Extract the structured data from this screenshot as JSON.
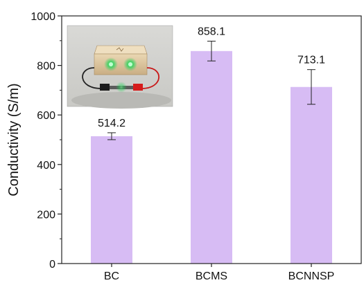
{
  "chart_data": {
    "type": "bar",
    "categories": [
      "BC",
      "BCMS",
      "BCNNSP"
    ],
    "values": [
      514.2,
      858.1,
      713.1
    ],
    "error": [
      14,
      40,
      70
    ],
    "data_labels": [
      "514.2",
      "858.1",
      "713.1"
    ],
    "ylabel": "Conductivity (S/m)",
    "xlabel": "",
    "ylim": [
      0,
      1000
    ],
    "yticks": [
      0,
      200,
      400,
      600,
      800,
      1000
    ],
    "ytick_labels": [
      "0",
      "200",
      "400",
      "600",
      "800",
      "1000"
    ],
    "bar_color": "#d7bcf4",
    "grid": false,
    "inset": "photo of a glowing green LED circuit box connected by red and black wires"
  }
}
